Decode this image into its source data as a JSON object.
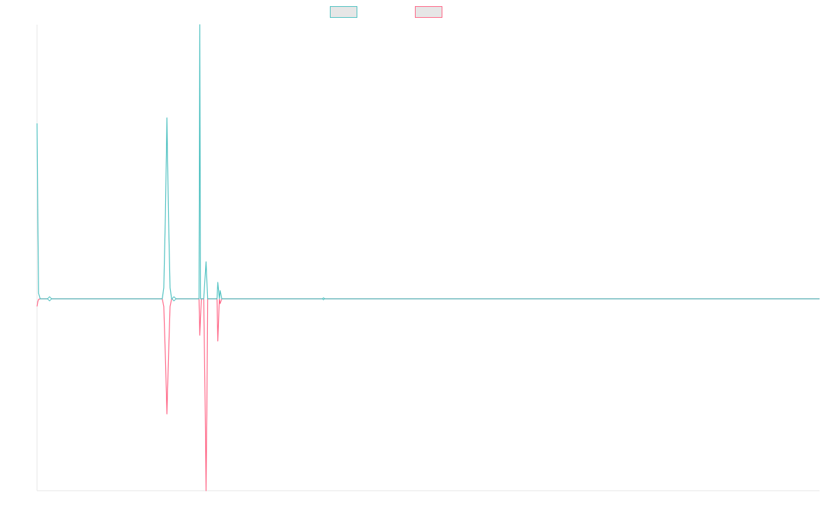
{
  "chart_data": {
    "type": "line",
    "title": "",
    "xlabel": "",
    "ylabel": "",
    "grid": false,
    "legend_position": "top-center",
    "xlim": [
      0,
      1000
    ],
    "ylim": [
      -100,
      100
    ],
    "series": [
      {
        "key": "series-1",
        "color": "#4bc0c0",
        "fill": "#e6e6e6",
        "points": [
          [
            0,
            64
          ],
          [
            1,
            30
          ],
          [
            2,
            2
          ],
          [
            4,
            0
          ],
          [
            16,
            0
          ],
          [
            17,
            0.4
          ],
          [
            18,
            0
          ],
          [
            160,
            0
          ],
          [
            162,
            4
          ],
          [
            164,
            30
          ],
          [
            166,
            66
          ],
          [
            168,
            30
          ],
          [
            170,
            4
          ],
          [
            172,
            0
          ],
          [
            174,
            0
          ],
          [
            175,
            0.6
          ],
          [
            176,
            0
          ],
          [
            206,
            0
          ],
          [
            207,
            0
          ],
          [
            208,
            100
          ],
          [
            209,
            0
          ],
          [
            213,
            0
          ],
          [
            216,
            13.5
          ],
          [
            218,
            0
          ],
          [
            230,
            0
          ],
          [
            231,
            6
          ],
          [
            233,
            0
          ],
          [
            234,
            3
          ],
          [
            236,
            0
          ],
          [
            366,
            0
          ],
          [
            367,
            0.2
          ],
          [
            368,
            0
          ],
          [
            1000,
            0
          ]
        ]
      },
      {
        "key": "series-2",
        "color": "#ff6384",
        "fill": "#e6e6e6",
        "points": [
          [
            0,
            -4
          ],
          [
            1,
            -1.5
          ],
          [
            2,
            -0.3
          ],
          [
            4,
            0
          ],
          [
            16,
            0
          ],
          [
            17,
            -0.4
          ],
          [
            18,
            0
          ],
          [
            160,
            0
          ],
          [
            162,
            -4
          ],
          [
            164,
            -30
          ],
          [
            166,
            -60
          ],
          [
            168,
            -30
          ],
          [
            170,
            -4
          ],
          [
            172,
            0
          ],
          [
            207,
            0
          ],
          [
            208,
            -19
          ],
          [
            210,
            0
          ],
          [
            213,
            0
          ],
          [
            215,
            -60
          ],
          [
            216,
            -100
          ],
          [
            217,
            -60
          ],
          [
            218,
            0
          ],
          [
            230,
            0
          ],
          [
            231,
            -22
          ],
          [
            233,
            0
          ],
          [
            234,
            -2.5
          ],
          [
            236,
            0
          ],
          [
            1000,
            0
          ]
        ]
      }
    ]
  }
}
